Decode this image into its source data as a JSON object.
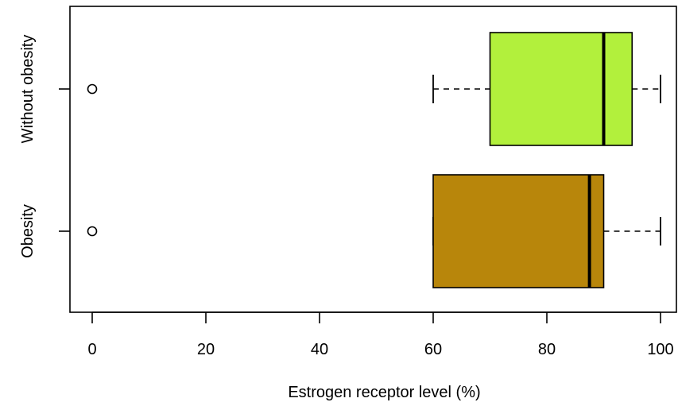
{
  "chart_data": {
    "type": "boxplot",
    "orientation": "horizontal",
    "xlabel": "Estrogen receptor level (%)",
    "xlim": [
      -4,
      102
    ],
    "xticks": [
      0,
      20,
      40,
      60,
      80,
      100
    ],
    "xtick_labels": [
      "0",
      "20",
      "40",
      "60",
      "80",
      "100"
    ],
    "categories": [
      "Obesity",
      "Without obesity"
    ],
    "series": [
      {
        "name": "Obesity",
        "whisker_low": 60,
        "q1": 60,
        "median": 87.5,
        "q3": 90,
        "whisker_high": 100,
        "outliers": [
          0
        ],
        "color": "#b8860b"
      },
      {
        "name": "Without obesity",
        "whisker_low": 60,
        "q1": 70,
        "median": 90,
        "q3": 95,
        "whisker_high": 100,
        "outliers": [
          0
        ],
        "color": "#b2f03c"
      }
    ],
    "grid": false,
    "legend": "none"
  }
}
